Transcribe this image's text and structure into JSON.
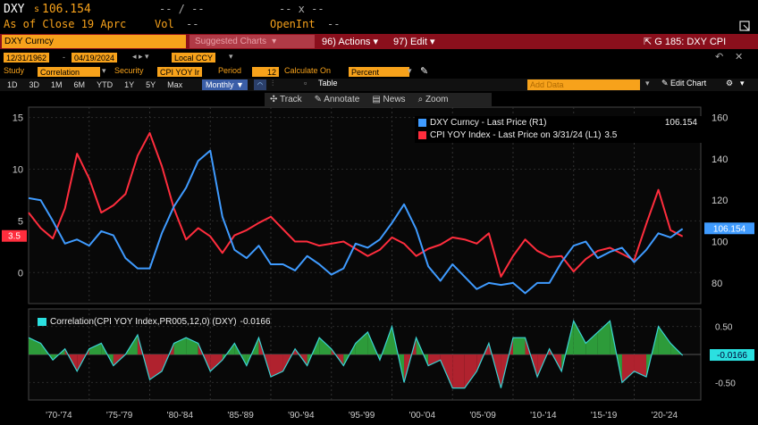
{
  "header": {
    "ticker": "DXY",
    "price_prefix": "s",
    "price": "106.154",
    "change": "-- / --",
    "x_label": "-- x --",
    "as_of": "As of Close 19 Aprc",
    "vol_label": "Vol",
    "vol_value": "--",
    "openint_label": "OpenInt",
    "openint_value": "--"
  },
  "toolbar": {
    "security": "DXY Curncy",
    "suggested": "Suggested Charts",
    "actions_num": "96)",
    "actions": "Actions",
    "edit_num": "97)",
    "edit": "Edit",
    "chart_id": "G 185: DXY CPI"
  },
  "controls": {
    "date_start": "12/31/1962",
    "date_end": "04/19/2024",
    "currency": "Local CCY",
    "study_label": "Study",
    "study_value": "Correlation",
    "security_label": "Security",
    "security_value": "CPI YOY Ir",
    "period_label": "Period",
    "period_value": "12",
    "calc_label": "Calculate On",
    "calc_value": "Percent"
  },
  "ranges": [
    "1D",
    "3D",
    "1M",
    "6M",
    "YTD",
    "1Y",
    "5Y",
    "Max"
  ],
  "freq": "Monthly",
  "table_label": "Table",
  "add_data": "Add Data",
  "edit_chart": "Edit Chart",
  "subtoolbar": {
    "track": "Track",
    "annotate": "Annotate",
    "news": "News",
    "zoom": "Zoom"
  },
  "legend": {
    "dxy": {
      "label": "DXY Curncy - Last Price (R1)",
      "value": "106.154",
      "color": "#3f9bff"
    },
    "cpi": {
      "label": "CPI YOY Index - Last Price on 3/31/24 (L1)",
      "value": "3.5",
      "color": "#ff2d3d"
    }
  },
  "corr": {
    "label": "Correlation(CPI YOY Index,PR005,12,0) (DXY)",
    "value": "-0.0166"
  },
  "chart_data": [
    {
      "type": "line",
      "x_labels": [
        "'70-'74",
        "'75-'79",
        "'80-'84",
        "'85-'89",
        "'90-'94",
        "'95-'99",
        "'00-'04",
        "'05-'09",
        "'10-'14",
        "'15-'19",
        "'20-'24"
      ],
      "left_axis": {
        "ticks": [
          "15",
          "10",
          "5",
          "0"
        ],
        "ylim": [
          -3,
          16
        ]
      },
      "right_axis": {
        "ticks": [
          "160",
          "140",
          "120",
          "100",
          "80"
        ],
        "ylim": [
          70,
          165
        ]
      },
      "last_left_label": "3.5",
      "last_right_label": "106.154",
      "series": [
        {
          "name": "CPI YOY Index - Last Price on 3/31/24 (L1)",
          "axis": "left",
          "color": "#ff2d3d",
          "x": [
            1970,
            1971,
            1972,
            1973,
            1974,
            1975,
            1976,
            1977,
            1978,
            1979,
            1980,
            1981,
            1982,
            1983,
            1984,
            1985,
            1986,
            1987,
            1988,
            1989,
            1990,
            1991,
            1992,
            1993,
            1994,
            1995,
            1996,
            1997,
            1998,
            1999,
            2000,
            2001,
            2002,
            2003,
            2004,
            2005,
            2006,
            2007,
            2008,
            2009,
            2010,
            2011,
            2012,
            2013,
            2014,
            2015,
            2016,
            2017,
            2018,
            2019,
            2020,
            2021,
            2022,
            2023,
            2024
          ],
          "values": [
            5.8,
            4.3,
            3.3,
            6.2,
            11.5,
            9.1,
            5.8,
            6.5,
            7.6,
            11.3,
            13.5,
            10.3,
            6.2,
            3.2,
            4.3,
            3.5,
            1.9,
            3.6,
            4.1,
            4.8,
            5.4,
            4.2,
            3.0,
            3.0,
            2.6,
            2.8,
            3.0,
            2.3,
            1.6,
            2.2,
            3.4,
            2.8,
            1.6,
            2.3,
            2.7,
            3.4,
            3.2,
            2.8,
            3.8,
            -0.4,
            1.6,
            3.2,
            2.1,
            1.5,
            1.6,
            0.1,
            1.3,
            2.1,
            2.4,
            1.8,
            1.2,
            4.7,
            8.0,
            4.1,
            3.5
          ]
        },
        {
          "name": "DXY Curncy - Last Price (R1)",
          "axis": "right",
          "color": "#3f9bff",
          "x": [
            1970,
            1971,
            1972,
            1973,
            1974,
            1975,
            1976,
            1977,
            1978,
            1979,
            1980,
            1981,
            1982,
            1983,
            1984,
            1985,
            1986,
            1987,
            1988,
            1989,
            1990,
            1991,
            1992,
            1993,
            1994,
            1995,
            1996,
            1997,
            1998,
            1999,
            2000,
            2001,
            2002,
            2003,
            2004,
            2005,
            2006,
            2007,
            2008,
            2009,
            2010,
            2011,
            2012,
            2013,
            2014,
            2015,
            2016,
            2017,
            2018,
            2019,
            2020,
            2021,
            2022,
            2023,
            2024
          ],
          "values": [
            121,
            120,
            110,
            99,
            101,
            98,
            105,
            103,
            92,
            87,
            87,
            104,
            117,
            126,
            139,
            144,
            112,
            96,
            92,
            98,
            89,
            89,
            86,
            93,
            89,
            84,
            87,
            99,
            97,
            101,
            109,
            118,
            106,
            88,
            81,
            89,
            83,
            77,
            80,
            79,
            80,
            75,
            80,
            80,
            90,
            98,
            100,
            92,
            95,
            97,
            90,
            96,
            104,
            102,
            106.154
          ]
        }
      ]
    },
    {
      "type": "area",
      "title": "Correlation(CPI YOY Index,PR005,12,0) (DXY)",
      "ylim": [
        -0.75,
        0.75
      ],
      "y_ticks": [
        "0.50",
        "-0.50"
      ],
      "last_label": "-0.0166",
      "x": [
        1970,
        1971,
        1972,
        1973,
        1974,
        1975,
        1976,
        1977,
        1978,
        1979,
        1980,
        1981,
        1982,
        1983,
        1984,
        1985,
        1986,
        1987,
        1988,
        1989,
        1990,
        1991,
        1992,
        1993,
        1994,
        1995,
        1996,
        1997,
        1998,
        1999,
        2000,
        2001,
        2002,
        2003,
        2004,
        2005,
        2006,
        2007,
        2008,
        2009,
        2010,
        2011,
        2012,
        2013,
        2014,
        2015,
        2016,
        2017,
        2018,
        2019,
        2020,
        2021,
        2022,
        2023,
        2024
      ],
      "values": [
        0.3,
        0.2,
        -0.1,
        0.1,
        -0.3,
        0.1,
        0.2,
        -0.2,
        0.0,
        0.35,
        -0.45,
        -0.3,
        0.2,
        0.3,
        0.2,
        -0.3,
        -0.1,
        0.2,
        -0.2,
        0.3,
        -0.4,
        -0.3,
        0.1,
        -0.2,
        0.3,
        0.1,
        -0.2,
        0.2,
        0.4,
        -0.1,
        0.5,
        -0.5,
        0.3,
        -0.2,
        -0.1,
        -0.6,
        -0.6,
        -0.3,
        0.2,
        -0.6,
        0.3,
        0.3,
        -0.4,
        0.1,
        -0.3,
        0.6,
        0.2,
        0.4,
        0.6,
        -0.5,
        -0.3,
        -0.4,
        0.5,
        0.2,
        -0.0166
      ]
    }
  ]
}
